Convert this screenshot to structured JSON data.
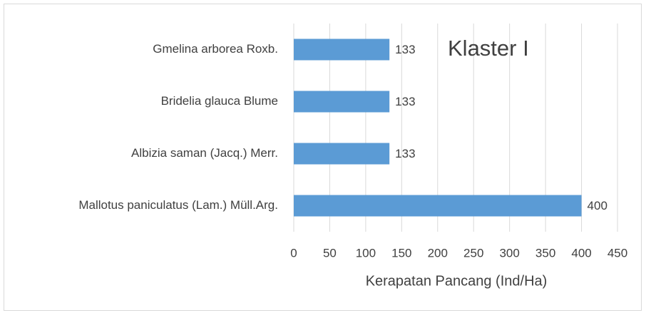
{
  "chart_data": {
    "type": "hbar",
    "annotation": "Klaster I",
    "categories": [
      "Gmelina arborea Roxb.",
      "Bridelia glauca Blume",
      "Albizia saman (Jacq.) Merr.",
      "Mallotus paniculatus (Lam.) Müll.Arg."
    ],
    "values": [
      133,
      133,
      133,
      400
    ],
    "color": "#5b9bd5",
    "x_label": "Kerapatan Pancang (Ind/Ha)",
    "xlim": [
      0,
      450
    ],
    "xticks": [
      0,
      50,
      100,
      150,
      200,
      250,
      300,
      350,
      400,
      450
    ],
    "grid": true
  }
}
